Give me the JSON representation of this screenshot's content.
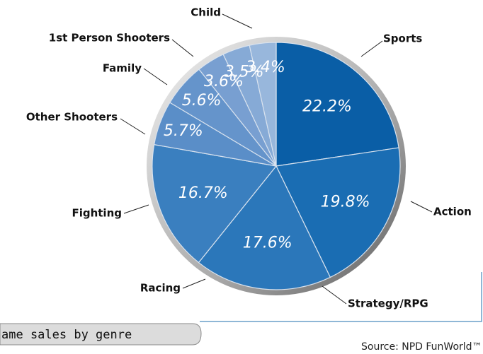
{
  "chart_data": {
    "type": "pie",
    "categories": [
      "Sports",
      "Action",
      "Strategy/RPG",
      "Racing",
      "Fighting",
      "Other Shooters",
      "Family",
      "1st Person Shooters",
      "Child"
    ],
    "values": [
      22.2,
      19.8,
      17.6,
      16.7,
      5.7,
      5.6,
      3.6,
      3.5,
      3.4
    ],
    "value_labels": [
      "22.2%",
      "19.8%",
      "17.6%",
      "16.7%",
      "5.7%",
      "5.6%",
      "3.6%",
      "3.5%",
      "3.4%"
    ],
    "colors": [
      "#0a5ea6",
      "#1a6db3",
      "#2b77ba",
      "#3a7fbf",
      "#5a8ec8",
      "#6594cb",
      "#789fd1",
      "#86aad6",
      "#98b7dc"
    ],
    "caption": "ame sales by genre",
    "source": "Source: NPD FunWorld™"
  }
}
